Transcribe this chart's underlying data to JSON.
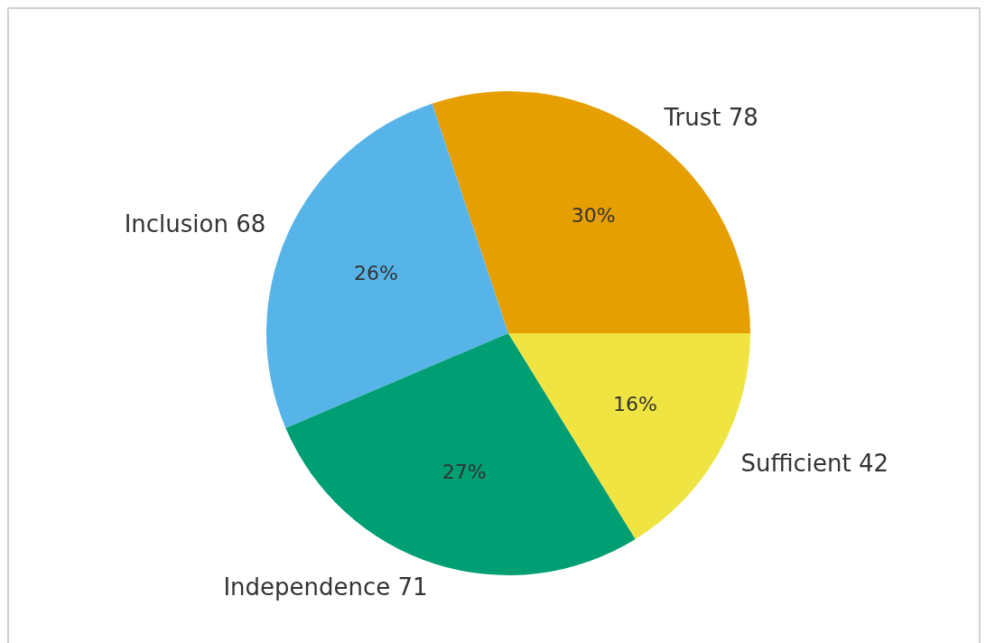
{
  "chart_data": {
    "type": "pie",
    "categories": [
      "Trust 78",
      "Inclusion 68",
      "Independence 71",
      "Sufficient 42"
    ],
    "values": [
      30.1,
      26.3,
      27.4,
      16.2
    ],
    "colors": [
      "#e69f00",
      "#56b4e9",
      "#009e73",
      "#f0e442"
    ],
    "value_labels": [
      "30%",
      "26%",
      "27%",
      "16%"
    ]
  }
}
